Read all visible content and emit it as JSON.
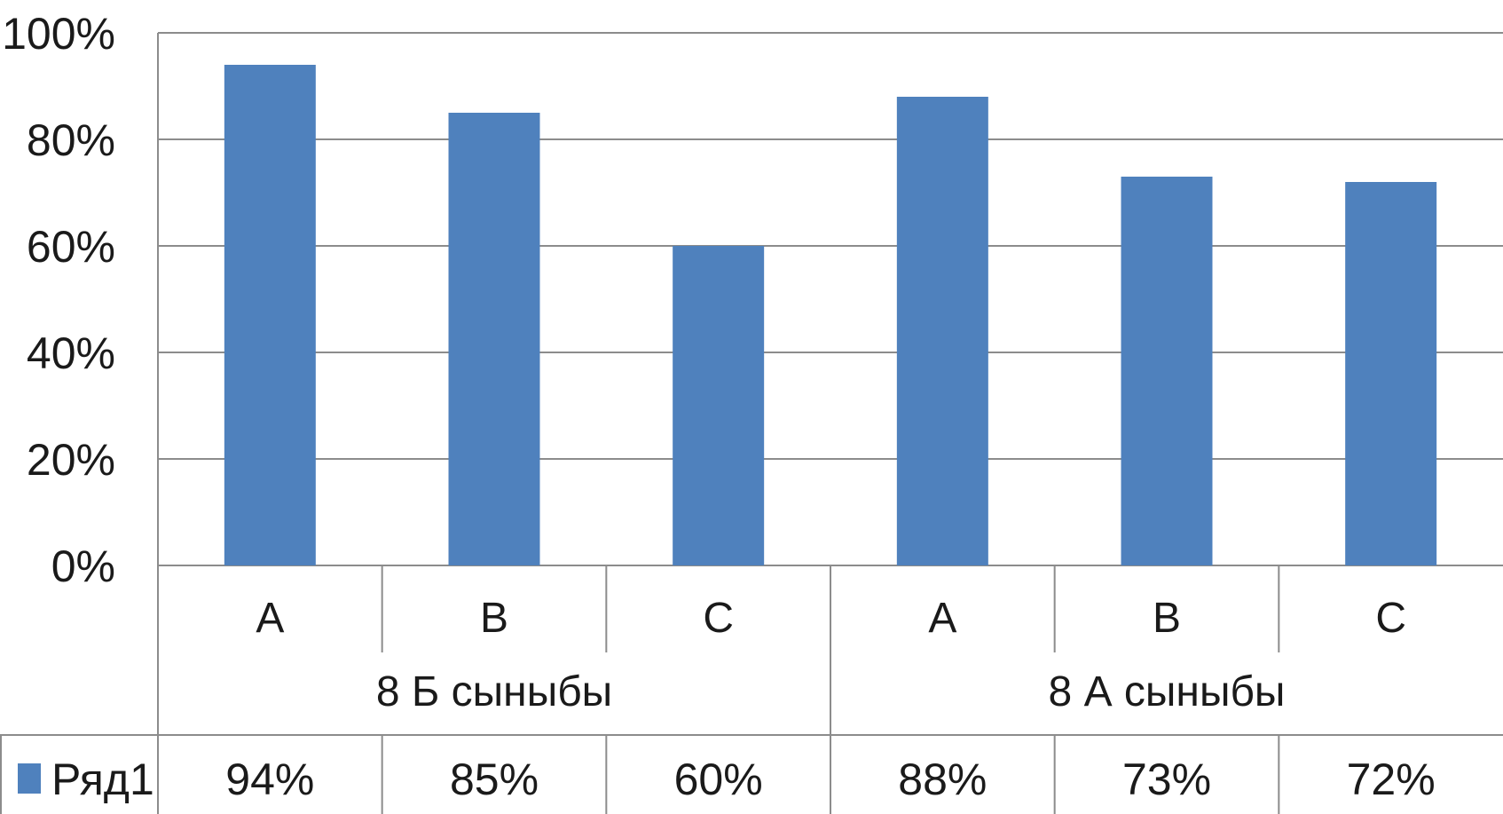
{
  "chart_data": {
    "type": "bar",
    "title": "",
    "xlabel": "",
    "ylabel": "",
    "ylim": [
      0,
      1
    ],
    "y_ticks": [
      "0%",
      "20%",
      "40%",
      "60%",
      "80%",
      "100%"
    ],
    "y_tick_values": [
      0,
      0.2,
      0.4,
      0.6,
      0.8,
      1.0
    ],
    "grid": true,
    "legend_placement": "data-table-left",
    "categories": [
      "A",
      "B",
      "C",
      "A",
      "B",
      "C"
    ],
    "groups": [
      {
        "label": "8 Б сыныбы",
        "categories": [
          "A",
          "B",
          "C"
        ]
      },
      {
        "label": "8 А сыныбы",
        "categories": [
          "A",
          "B",
          "C"
        ]
      }
    ],
    "series": [
      {
        "name": "Ряд1",
        "values": [
          0.94,
          0.85,
          0.6,
          0.88,
          0.73,
          0.72
        ],
        "labels": [
          "94%",
          "85%",
          "60%",
          "88%",
          "73%",
          "72%"
        ],
        "color": "#4f81bd"
      }
    ]
  }
}
